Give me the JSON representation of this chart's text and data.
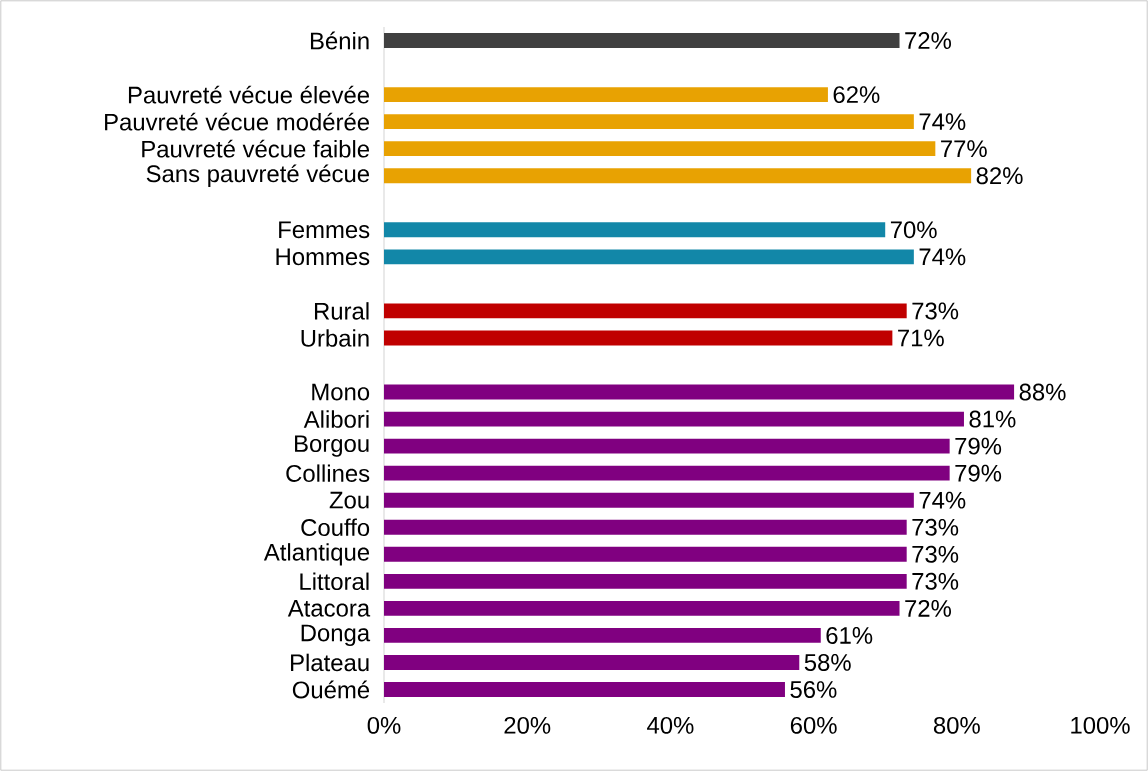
{
  "chart_data": {
    "type": "bar",
    "orientation": "horizontal",
    "categories": [
      "Bénin",
      null,
      "Pauvreté vécue élevée",
      "Pauvreté vécue modérée",
      "Pauvreté vécue faible",
      "Sans pauvreté vécue",
      null,
      "Femmes",
      "Hommes",
      null,
      "Rural",
      "Urbain",
      null,
      "Mono",
      "Alibori",
      "Borgou",
      "Collines",
      "Zou",
      "Couffo",
      "Atlantique",
      "Littoral",
      "Atacora",
      "Donga",
      "Plateau",
      "Ouémé"
    ],
    "values": [
      72,
      null,
      62,
      74,
      77,
      82,
      null,
      70,
      74,
      null,
      73,
      71,
      null,
      88,
      81,
      79,
      79,
      74,
      73,
      73,
      73,
      72,
      61,
      58,
      56
    ],
    "value_labels": [
      "72%",
      null,
      "62%",
      "74%",
      "77%",
      "82%",
      null,
      "70%",
      "74%",
      null,
      "73%",
      "71%",
      null,
      "88%",
      "81%",
      "79%",
      "79%",
      "74%",
      "73%",
      "73%",
      "73%",
      "72%",
      "61%",
      "58%",
      "56%"
    ],
    "colors": [
      "#404040",
      null,
      "#E8A202",
      "#E8A202",
      "#E8A202",
      "#E8A202",
      null,
      "#1287A8",
      "#1287A8",
      null,
      "#C00000",
      "#C00000",
      null,
      "#800080",
      "#800080",
      "#800080",
      "#800080",
      "#800080",
      "#800080",
      "#800080",
      "#800080",
      "#800080",
      "#800080",
      "#800080",
      "#800080"
    ],
    "xlim": [
      0,
      100
    ],
    "xticks": [
      {
        "value": 0,
        "label": "0%"
      },
      {
        "value": 20,
        "label": "20%"
      },
      {
        "value": 40,
        "label": "40%"
      },
      {
        "value": 60,
        "label": "60%"
      },
      {
        "value": 80,
        "label": "80%"
      },
      {
        "value": 100,
        "label": "100%"
      }
    ]
  }
}
